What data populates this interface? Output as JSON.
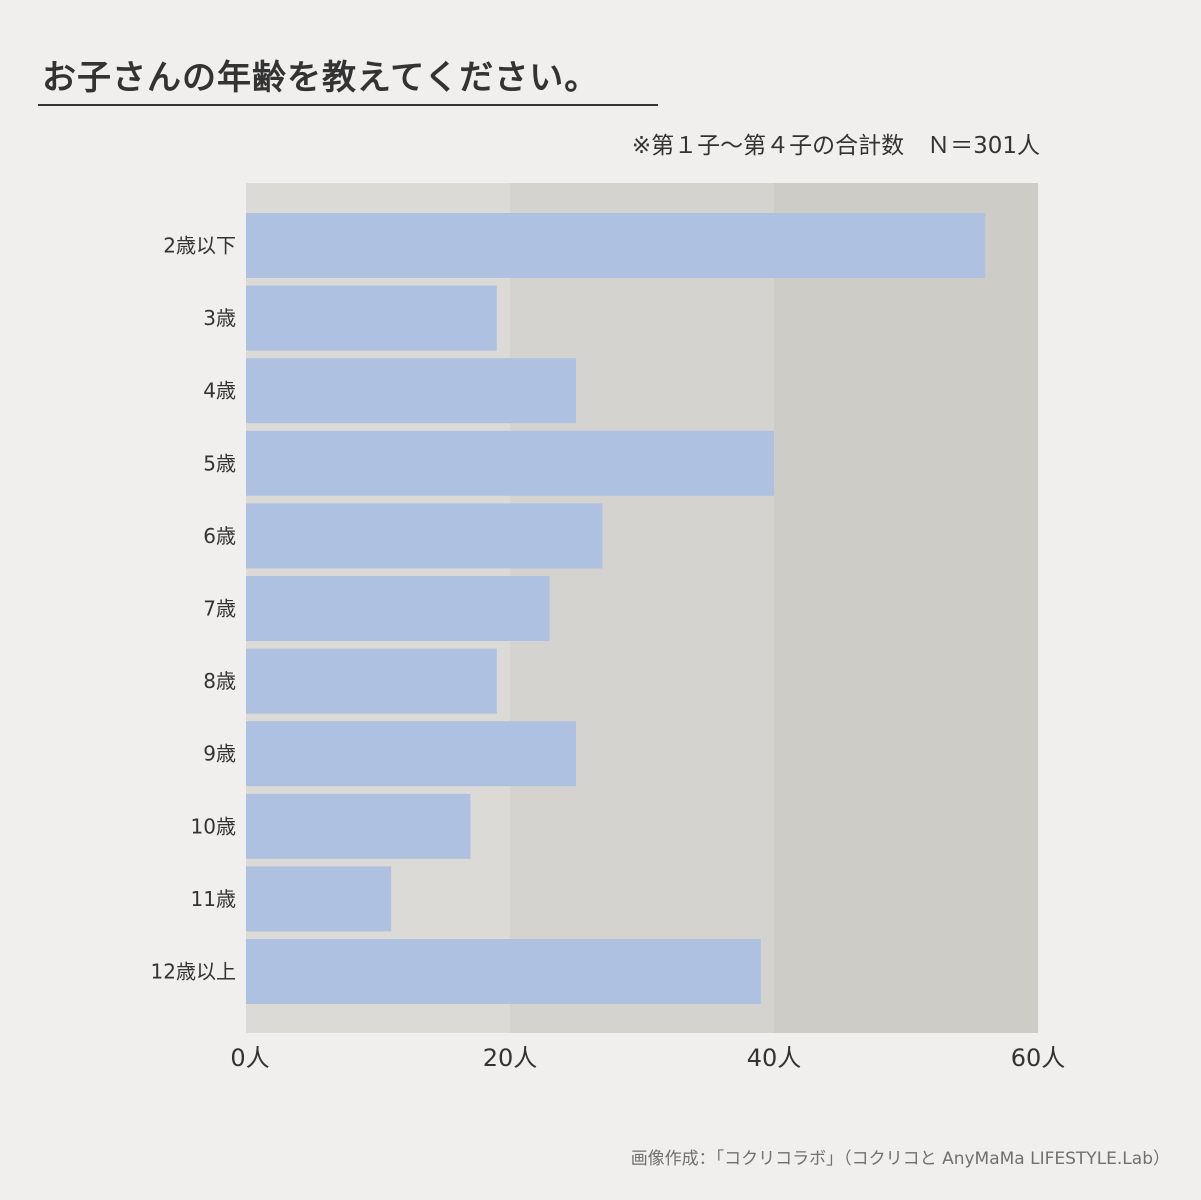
{
  "title": "お子さんの年齢を教えてください。",
  "note": "※第１子〜第４子の合計数　Ｎ＝301人",
  "credit": "画像作成：「コクリコラボ」（コクリコと AnyMaMa LIFESTYLE.Lab）",
  "colors": {
    "bar": "#afc1e0",
    "band_light": "#dcdad6",
    "band_mid": "#d5d3cf",
    "band_dark": "#cdccc7",
    "text": "#333333"
  },
  "chart_data": {
    "type": "bar",
    "orientation": "horizontal",
    "categories": [
      "2歳以下",
      "3歳",
      "4歳",
      "5歳",
      "6歳",
      "7歳",
      "8歳",
      "9歳",
      "10歳",
      "11歳",
      "12歳以上"
    ],
    "values": [
      56,
      19,
      25,
      40,
      27,
      23,
      19,
      25,
      17,
      11,
      39
    ],
    "xlim": [
      0,
      60
    ],
    "x_ticks": [
      0,
      20,
      40,
      60
    ],
    "x_tick_labels": [
      "0人",
      "20人",
      "40人",
      "60人"
    ],
    "grid": false,
    "legend": "none"
  }
}
